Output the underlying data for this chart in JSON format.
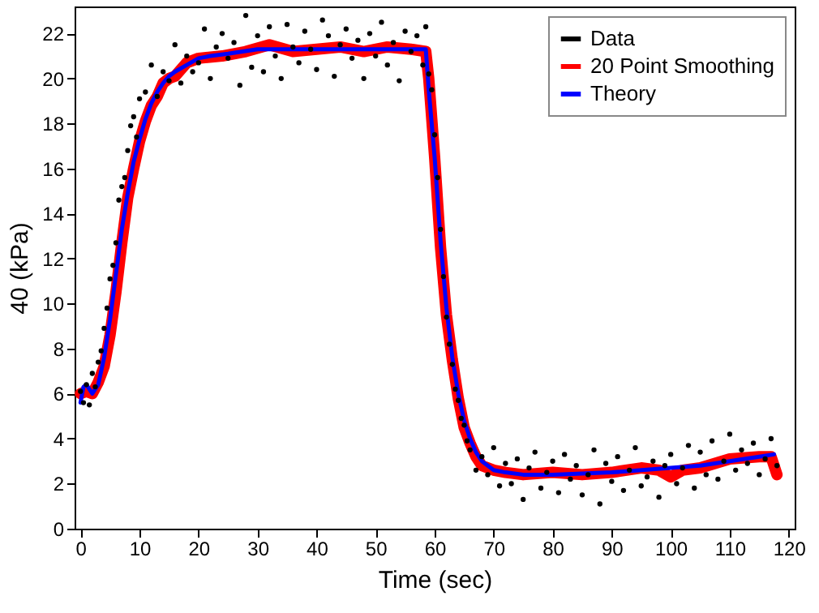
{
  "chart_data": {
    "type": "scatter",
    "xlabel": "Time (sec)",
    "ylabel": "40 (kPa)",
    "xlim": [
      -1,
      121
    ],
    "ylim": [
      0,
      23.2
    ],
    "xticks": [
      0,
      10,
      20,
      30,
      40,
      50,
      60,
      70,
      80,
      90,
      100,
      110,
      120
    ],
    "yticks": [
      0,
      2,
      4,
      6,
      8,
      10,
      12,
      14,
      16,
      18,
      20,
      22
    ],
    "legend": "top right",
    "grid": false,
    "series": [
      {
        "name": "Data",
        "color": "#000000",
        "marker": "circle",
        "x": [
          0,
          0.5,
          1,
          1.5,
          2,
          2.5,
          3,
          3.5,
          4,
          4.5,
          5,
          5.5,
          6,
          6.5,
          7,
          7.5,
          8,
          8.5,
          9,
          9.5,
          10,
          11,
          12,
          13,
          14,
          15,
          16,
          17,
          18,
          19,
          20,
          21,
          22,
          23,
          24,
          25,
          26,
          27,
          28,
          29,
          30,
          31,
          32,
          33,
          34,
          35,
          36,
          37,
          38,
          39,
          40,
          41,
          42,
          43,
          44,
          45,
          46,
          47,
          48,
          49,
          50,
          51,
          52,
          53,
          54,
          55,
          56,
          57,
          58,
          58.5,
          59,
          59.5,
          60,
          60.5,
          61,
          61.5,
          62,
          62.5,
          63,
          63.5,
          64,
          64.5,
          65,
          65.5,
          66,
          67,
          68,
          69,
          70,
          71,
          72,
          73,
          74,
          75,
          76,
          77,
          78,
          79,
          80,
          81,
          82,
          83,
          84,
          85,
          86,
          87,
          88,
          89,
          90,
          91,
          92,
          93,
          94,
          95,
          96,
          97,
          98,
          99,
          100,
          101,
          102,
          103,
          104,
          105,
          106,
          107,
          108,
          109,
          110,
          111,
          112,
          113,
          114,
          115,
          116,
          117,
          118
        ],
        "values": [
          6.1,
          5.6,
          6.4,
          5.5,
          6.9,
          6.3,
          7.4,
          7.9,
          8.9,
          9.8,
          11.1,
          11.7,
          12.7,
          14.6,
          15.2,
          15.6,
          16.8,
          17.9,
          18.3,
          17.4,
          19.1,
          19.4,
          20.6,
          19.2,
          20.3,
          19.9,
          21.5,
          19.8,
          21.0,
          20.3,
          20.7,
          22.2,
          20.0,
          21.4,
          22.0,
          20.9,
          21.6,
          19.7,
          22.8,
          20.5,
          21.9,
          20.3,
          22.3,
          21.0,
          20.0,
          22.4,
          21.4,
          20.7,
          22.1,
          21.3,
          20.4,
          22.6,
          21.9,
          20.1,
          21.5,
          22.2,
          20.9,
          21.7,
          20.0,
          22.0,
          21.0,
          22.5,
          20.6,
          21.6,
          19.9,
          22.1,
          21.2,
          21.9,
          20.6,
          22.3,
          20.2,
          19.5,
          17.5,
          15.6,
          13.3,
          11.2,
          9.4,
          8.2,
          7.3,
          6.2,
          5.7,
          4.9,
          4.6,
          3.9,
          3.5,
          2.6,
          3.2,
          2.4,
          3.6,
          1.9,
          2.9,
          2.0,
          3.1,
          1.3,
          2.7,
          3.4,
          1.8,
          2.5,
          3.0,
          1.6,
          3.3,
          2.2,
          2.8,
          1.5,
          2.4,
          3.5,
          1.1,
          2.9,
          2.1,
          3.2,
          1.7,
          2.6,
          3.6,
          1.9,
          2.3,
          3.0,
          1.4,
          2.8,
          3.3,
          2.0,
          2.7,
          3.7,
          1.8,
          3.4,
          2.4,
          3.9,
          2.2,
          3.0,
          4.2,
          2.6,
          3.5,
          2.9,
          3.8,
          2.4,
          3.1,
          4.0,
          2.8
        ]
      },
      {
        "name": "20 Point Smoothing",
        "type": "line",
        "color": "#ff0000",
        "x": [
          0,
          1,
          2,
          3,
          4,
          5,
          6,
          7,
          8,
          9,
          10,
          11,
          12,
          13,
          14,
          15,
          16,
          18,
          20,
          24,
          28,
          32,
          36,
          40,
          44,
          48,
          52,
          56,
          58.5,
          59,
          60,
          61,
          62,
          63,
          64,
          65,
          66,
          67,
          68,
          70,
          72,
          75,
          80,
          85,
          90,
          95,
          98,
          100,
          102,
          105,
          110,
          115,
          117,
          117.5,
          118
        ],
        "values": [
          6.0,
          6.1,
          6.0,
          6.5,
          7.2,
          8.6,
          10.5,
          12.7,
          14.7,
          16.0,
          17.2,
          18.1,
          18.8,
          19.2,
          19.8,
          20.0,
          20.1,
          20.7,
          20.9,
          21.0,
          21.2,
          21.5,
          21.2,
          21.3,
          21.4,
          21.2,
          21.4,
          21.3,
          21.2,
          20.0,
          16.5,
          12.5,
          9.5,
          7.5,
          5.8,
          4.5,
          3.8,
          3.2,
          2.8,
          2.6,
          2.5,
          2.4,
          2.5,
          2.4,
          2.5,
          2.7,
          2.6,
          2.3,
          2.6,
          2.7,
          3.1,
          3.2,
          3.2,
          2.8,
          2.4
        ]
      },
      {
        "name": "Theory",
        "type": "line",
        "color": "#0000ff",
        "x": [
          0,
          0.5,
          1,
          2,
          3,
          4,
          5,
          6,
          7,
          8,
          9,
          10,
          11,
          12,
          13,
          14,
          15,
          16,
          18,
          20,
          22,
          25,
          30,
          40,
          50,
          58.5,
          59,
          60,
          61,
          62,
          63,
          64,
          65,
          66,
          67,
          68,
          70,
          72,
          75,
          80,
          90,
          100,
          105,
          110,
          115,
          117.5
        ],
        "values": [
          5.6,
          6.3,
          6.4,
          6.0,
          6.4,
          7.6,
          9.3,
          11.3,
          13.3,
          14.9,
          16.3,
          17.3,
          18.2,
          18.9,
          19.4,
          19.8,
          20.1,
          20.3,
          20.6,
          20.9,
          21.0,
          21.1,
          21.3,
          21.3,
          21.3,
          21.3,
          19.5,
          16.5,
          12.8,
          9.8,
          7.6,
          6.0,
          4.8,
          4.0,
          3.4,
          3.0,
          2.6,
          2.5,
          2.4,
          2.4,
          2.5,
          2.7,
          2.8,
          3.0,
          3.2,
          3.3
        ]
      }
    ]
  }
}
